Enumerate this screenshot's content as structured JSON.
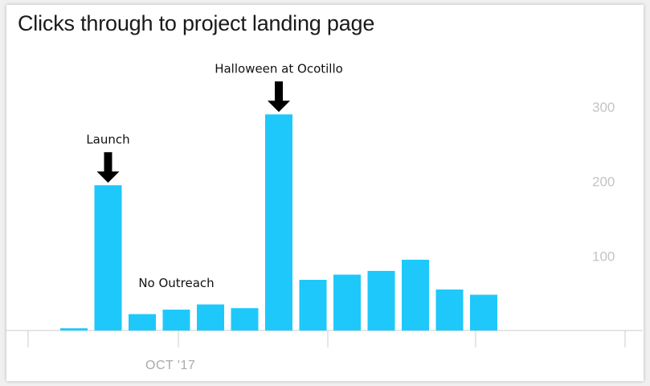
{
  "chart_data": {
    "type": "bar",
    "title": "Clicks through to project landing page",
    "values": [
      3,
      195,
      22,
      28,
      35,
      30,
      290,
      68,
      75,
      80,
      95,
      55,
      48
    ],
    "x_tick_labels": [
      "OCT '17"
    ],
    "y_ticks": [
      100,
      200,
      300
    ],
    "ylim": [
      0,
      300
    ],
    "grid": false,
    "colors": {
      "bar": "#1ec8fa",
      "axis": "#cccccc",
      "arrow": "#000000"
    },
    "annotations": [
      {
        "text": "Launch",
        "bar_index": 1,
        "arrow": true
      },
      {
        "text": "No Outreach",
        "bar_index": 3,
        "arrow": false
      },
      {
        "text": "Halloween at Ocotillo",
        "bar_index": 6,
        "arrow": true
      }
    ]
  }
}
